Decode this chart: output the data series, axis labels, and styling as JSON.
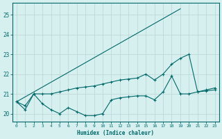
{
  "xlabel": "Humidex (Indice chaleur)",
  "bg_color": "#d6f0f0",
  "line_color": "#006868",
  "grid_color": "#c0d8d8",
  "xlim": [
    -0.5,
    23.5
  ],
  "ylim": [
    19.6,
    25.6
  ],
  "xticks": [
    0,
    1,
    2,
    3,
    4,
    5,
    6,
    7,
    8,
    9,
    10,
    11,
    12,
    13,
    14,
    15,
    16,
    17,
    18,
    19,
    20,
    21,
    22,
    23
  ],
  "yticks": [
    20,
    21,
    22,
    23,
    24,
    25
  ],
  "series1_x": [
    0,
    1,
    2,
    3,
    4,
    5,
    6,
    7,
    8,
    9,
    10,
    11,
    12,
    13,
    14,
    15,
    16,
    17,
    18,
    19,
    20,
    21,
    22,
    23
  ],
  "series1_y": [
    20.6,
    20.2,
    21.0,
    20.5,
    20.2,
    20.0,
    20.3,
    20.1,
    19.9,
    19.9,
    20.0,
    20.7,
    20.8,
    20.85,
    20.9,
    20.9,
    20.7,
    21.1,
    21.9,
    21.0,
    21.0,
    21.1,
    21.15,
    21.2
  ],
  "series2_x": [
    0,
    1,
    2,
    3,
    4,
    5,
    6,
    7,
    8,
    9,
    10,
    11,
    12,
    13,
    14,
    15,
    16,
    17,
    18,
    19,
    20,
    21,
    22,
    23
  ],
  "series2_y": [
    20.6,
    20.4,
    21.0,
    21.0,
    21.0,
    21.1,
    21.2,
    21.3,
    21.35,
    21.4,
    21.5,
    21.6,
    21.7,
    21.75,
    21.8,
    22.0,
    21.7,
    22.0,
    22.5,
    22.8,
    23.0,
    21.1,
    21.2,
    21.3
  ],
  "series3_x": [
    0,
    19
  ],
  "series3_y": [
    20.6,
    25.3
  ]
}
